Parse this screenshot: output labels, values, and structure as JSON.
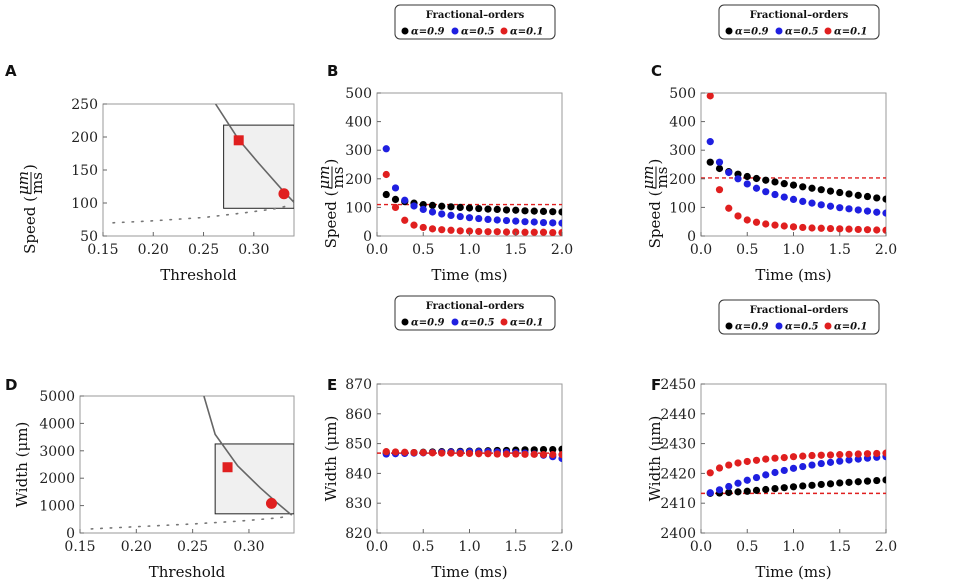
{
  "figure": {
    "legend": {
      "title": "Fractional–orders",
      "entries": [
        {
          "label": "α=0.9",
          "color": "#000000"
        },
        {
          "label": "α=0.5",
          "color": "#1f1fe0"
        },
        {
          "label": "α=0.1",
          "color": "#e01f1f"
        }
      ]
    }
  },
  "chart_data": [
    {
      "id": "A",
      "letter": "A",
      "type": "line",
      "xlabel": "Threshold",
      "ylabel": "Speed (μm/ms)",
      "ylabel_prefix": "Speed (",
      "ylabel_num": "μm",
      "ylabel_den": "ms",
      "ylabel_suffix": ")",
      "xlim": [
        0.15,
        0.34
      ],
      "ylim": [
        50,
        250
      ],
      "xticks": [
        0.15,
        0.2,
        0.25,
        0.3
      ],
      "xtick_labels": [
        "0.15",
        "0.20",
        "0.25",
        "0.30"
      ],
      "yticks": [
        50,
        100,
        150,
        200,
        250
      ],
      "ytick_labels": [
        "50",
        "100",
        "150",
        "200",
        "250"
      ],
      "upper_branch": [
        [
          0.262,
          250
        ],
        [
          0.285,
          196
        ],
        [
          0.305,
          160
        ],
        [
          0.33,
          117
        ],
        [
          0.34,
          101
        ]
      ],
      "lower_branch": [
        [
          0.16,
          70
        ],
        [
          0.2,
          73
        ],
        [
          0.25,
          78
        ],
        [
          0.29,
          85
        ],
        [
          0.32,
          91
        ],
        [
          0.335,
          96
        ]
      ],
      "inset_x": [
        0.27,
        0.34
      ],
      "inset_y": [
        92,
        218
      ],
      "markers": [
        {
          "shape": "square",
          "x": 0.285,
          "y": 195,
          "color": "#e01f1f"
        },
        {
          "shape": "circle",
          "x": 0.33,
          "y": 114,
          "color": "#e01f1f"
        }
      ]
    },
    {
      "id": "B",
      "letter": "B",
      "type": "scatter",
      "xlabel": "Time (ms)",
      "ylabel": "Speed (μm/ms)",
      "ylabel_prefix": "Speed (",
      "ylabel_num": "μm",
      "ylabel_den": "ms",
      "ylabel_suffix": ")",
      "xlim": [
        0,
        2.0
      ],
      "ylim": [
        0,
        500
      ],
      "xticks": [
        0,
        0.5,
        1.0,
        1.5,
        2.0
      ],
      "xtick_labels": [
        "0.0",
        "0.5",
        "1.0",
        "1.5",
        "2.0"
      ],
      "yticks": [
        0,
        100,
        200,
        300,
        400,
        500
      ],
      "ytick_labels": [
        "0",
        "100",
        "200",
        "300",
        "400",
        "500"
      ],
      "reference": 110,
      "x": [
        0.1,
        0.2,
        0.3,
        0.4,
        0.5,
        0.6,
        0.7,
        0.8,
        0.9,
        1.0,
        1.1,
        1.2,
        1.3,
        1.4,
        1.5,
        1.6,
        1.7,
        1.8,
        1.9,
        2.0
      ],
      "series": [
        {
          "name": "α=0.9",
          "color": "#000000",
          "values": [
            145,
            128,
            120,
            115,
            110,
            107,
            104,
            102,
            100,
            98,
            96,
            94,
            93,
            91,
            90,
            88,
            87,
            86,
            85,
            84
          ]
        },
        {
          "name": "α=0.5",
          "color": "#1f1fe0",
          "values": [
            305,
            168,
            125,
            105,
            93,
            84,
            77,
            72,
            68,
            64,
            61,
            58,
            56,
            54,
            52,
            50,
            49,
            47,
            46,
            45
          ]
        },
        {
          "name": "α=0.1",
          "color": "#e01f1f",
          "values": [
            215,
            100,
            55,
            38,
            30,
            25,
            22,
            20,
            18,
            17,
            16,
            15,
            15,
            14,
            14,
            13,
            13,
            13,
            12,
            12
          ]
        }
      ]
    },
    {
      "id": "C",
      "letter": "C",
      "type": "scatter",
      "xlabel": "Time (ms)",
      "ylabel": "Speed (μm/ms)",
      "ylabel_prefix": "Speed (",
      "ylabel_num": "μm",
      "ylabel_den": "ms",
      "ylabel_suffix": ")",
      "xlim": [
        0,
        2.0
      ],
      "ylim": [
        0,
        500
      ],
      "xticks": [
        0,
        0.5,
        1.0,
        1.5,
        2.0
      ],
      "xtick_labels": [
        "0.0",
        "0.5",
        "1.0",
        "1.5",
        "2.0"
      ],
      "yticks": [
        0,
        100,
        200,
        300,
        400,
        500
      ],
      "ytick_labels": [
        "0",
        "100",
        "200",
        "300",
        "400",
        "500"
      ],
      "reference": 203,
      "x": [
        0.1,
        0.2,
        0.3,
        0.4,
        0.5,
        0.6,
        0.7,
        0.8,
        0.9,
        1.0,
        1.1,
        1.2,
        1.3,
        1.4,
        1.5,
        1.6,
        1.7,
        1.8,
        1.9,
        2.0
      ],
      "series": [
        {
          "name": "α=0.9",
          "color": "#000000",
          "values": [
            258,
            236,
            225,
            216,
            208,
            201,
            195,
            189,
            183,
            178,
            172,
            167,
            162,
            157,
            152,
            147,
            142,
            138,
            133,
            129
          ]
        },
        {
          "name": "α=0.5",
          "color": "#1f1fe0",
          "values": [
            330,
            258,
            222,
            200,
            182,
            167,
            155,
            145,
            136,
            128,
            121,
            115,
            109,
            104,
            99,
            95,
            91,
            87,
            83,
            80
          ]
        },
        {
          "name": "α=0.1",
          "color": "#e01f1f",
          "values": [
            490,
            162,
            97,
            70,
            56,
            48,
            42,
            38,
            35,
            32,
            30,
            28,
            27,
            26,
            25,
            24,
            23,
            22,
            21,
            20
          ]
        }
      ]
    },
    {
      "id": "D",
      "letter": "D",
      "type": "line",
      "xlabel": "Threshold",
      "ylabel": "Width (μm)",
      "xlim": [
        0.15,
        0.34
      ],
      "ylim": [
        0,
        5000
      ],
      "xticks": [
        0.15,
        0.2,
        0.25,
        0.3
      ],
      "xtick_labels": [
        "0.15",
        "0.20",
        "0.25",
        "0.30"
      ],
      "yticks": [
        0,
        1000,
        2000,
        3000,
        4000,
        5000
      ],
      "ytick_labels": [
        "0",
        "1000",
        "2000",
        "3000",
        "4000",
        "5000"
      ],
      "upper_branch": [
        [
          0.26,
          5000
        ],
        [
          0.27,
          3600
        ],
        [
          0.29,
          2450
        ],
        [
          0.31,
          1650
        ],
        [
          0.325,
          1100
        ],
        [
          0.338,
          650
        ]
      ],
      "lower_branch": [
        [
          0.16,
          150
        ],
        [
          0.2,
          230
        ],
        [
          0.25,
          330
        ],
        [
          0.29,
          430
        ],
        [
          0.32,
          530
        ],
        [
          0.335,
          600
        ]
      ],
      "inset_x": [
        0.27,
        0.34
      ],
      "inset_y": [
        700,
        3250
      ],
      "markers": [
        {
          "shape": "square",
          "x": 0.281,
          "y": 2400,
          "color": "#e01f1f"
        },
        {
          "shape": "circle",
          "x": 0.32,
          "y": 1080,
          "color": "#e01f1f"
        }
      ]
    },
    {
      "id": "E",
      "letter": "E",
      "type": "scatter",
      "xlabel": "Time (ms)",
      "ylabel": "Width (μm)",
      "xlim": [
        0,
        2.0
      ],
      "ylim": [
        820,
        870
      ],
      "xticks": [
        0,
        0.5,
        1.0,
        1.5,
        2.0
      ],
      "xtick_labels": [
        "0.0",
        "0.5",
        "1.0",
        "1.5",
        "2.0"
      ],
      "yticks": [
        820,
        830,
        840,
        850,
        860,
        870
      ],
      "ytick_labels": [
        "820",
        "830",
        "840",
        "850",
        "860",
        "870"
      ],
      "reference": 846.8,
      "x": [
        0.1,
        0.2,
        0.3,
        0.4,
        0.5,
        0.6,
        0.7,
        0.8,
        0.9,
        1.0,
        1.1,
        1.2,
        1.3,
        1.4,
        1.5,
        1.6,
        1.7,
        1.8,
        1.9,
        2.0
      ],
      "series": [
        {
          "name": "α=0.9",
          "color": "#000000",
          "values": [
            846.8,
            846.9,
            847.0,
            847.0,
            847.1,
            847.2,
            847.3,
            847.3,
            847.4,
            847.5,
            847.5,
            847.6,
            847.7,
            847.7,
            847.8,
            847.9,
            847.9,
            848.0,
            848.0,
            848.1
          ]
        },
        {
          "name": "α=0.5",
          "color": "#1f1fe0",
          "values": [
            846.5,
            846.6,
            846.7,
            846.8,
            846.9,
            847.0,
            847.1,
            847.2,
            847.2,
            847.3,
            847.3,
            847.3,
            847.2,
            847.1,
            847.0,
            846.8,
            846.5,
            846.1,
            845.6,
            845.0
          ]
        },
        {
          "name": "α=0.1",
          "color": "#e01f1f",
          "values": [
            847.3,
            847.2,
            847.1,
            847.0,
            847.0,
            846.9,
            846.8,
            846.8,
            846.7,
            846.7,
            846.6,
            846.6,
            846.5,
            846.5,
            846.5,
            846.4,
            846.4,
            846.3,
            846.3,
            846.3
          ]
        }
      ]
    },
    {
      "id": "F",
      "letter": "F",
      "type": "scatter",
      "xlabel": "Time (ms)",
      "ylabel": "Width (μm)",
      "xlim": [
        0,
        2.0
      ],
      "ylim": [
        2400,
        2450
      ],
      "xticks": [
        0,
        0.5,
        1.0,
        1.5,
        2.0
      ],
      "xtick_labels": [
        "0.0",
        "0.5",
        "1.0",
        "1.5",
        "2.0"
      ],
      "yticks": [
        2400,
        2410,
        2420,
        2430,
        2440,
        2450
      ],
      "ytick_labels": [
        "2400",
        "2410",
        "2420",
        "2430",
        "2440",
        "2450"
      ],
      "reference": 2413.3,
      "x": [
        0.1,
        0.2,
        0.3,
        0.4,
        0.5,
        0.6,
        0.7,
        0.8,
        0.9,
        1.0,
        1.1,
        1.2,
        1.3,
        1.4,
        1.5,
        1.6,
        1.7,
        1.8,
        1.9,
        2.0
      ],
      "series": [
        {
          "name": "α=0.9",
          "color": "#000000",
          "values": [
            2413.3,
            2413.4,
            2413.6,
            2413.8,
            2414.0,
            2414.3,
            2414.6,
            2414.9,
            2415.2,
            2415.5,
            2415.8,
            2416.0,
            2416.3,
            2416.5,
            2416.8,
            2417.0,
            2417.2,
            2417.4,
            2417.6,
            2417.8
          ]
        },
        {
          "name": "α=0.5",
          "color": "#1f1fe0",
          "values": [
            2413.5,
            2414.5,
            2415.6,
            2416.7,
            2417.7,
            2418.6,
            2419.5,
            2420.3,
            2421.0,
            2421.7,
            2422.3,
            2422.8,
            2423.3,
            2423.7,
            2424.1,
            2424.5,
            2424.8,
            2425.1,
            2425.4,
            2425.6
          ]
        },
        {
          "name": "α=0.1",
          "color": "#e01f1f",
          "values": [
            2420.2,
            2421.8,
            2422.8,
            2423.5,
            2424.0,
            2424.4,
            2424.8,
            2425.1,
            2425.3,
            2425.6,
            2425.8,
            2426.0,
            2426.1,
            2426.2,
            2426.3,
            2426.4,
            2426.5,
            2426.6,
            2426.7,
            2426.8
          ]
        }
      ]
    }
  ]
}
